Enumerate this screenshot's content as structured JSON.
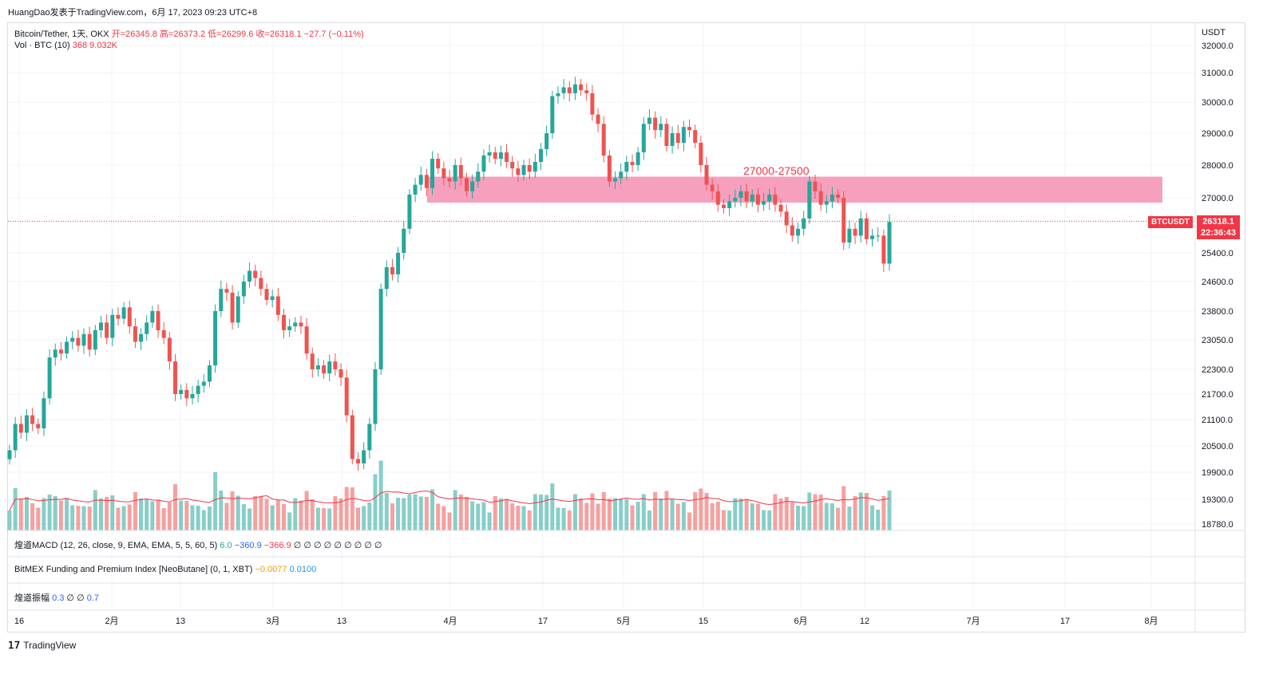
{
  "header": {
    "watermark": "HuangDao发表于TradingView.com，6月 17, 2023 09:23 UTC+8"
  },
  "legend": {
    "symbol": "Bitcoin/Tether, 1天, OKX",
    "ohlc": "开=26345.8  高=26373.2  低=26299.6  收=26318.1  −27.7 (−0.11%)",
    "volume_label": "Vol · BTC (10)",
    "volume_values": "368  9.032K"
  },
  "indicators": {
    "macd": {
      "label": "煌道MACD (12, 26, close, 9, EMA, EMA, 5, 5, 60, 5)",
      "v1": "6.0",
      "v2": "−360.9",
      "v3": "−366.9",
      "rest": "∅ ∅ ∅ ∅ ∅ ∅ ∅ ∅ ∅"
    },
    "bitmex": {
      "label": "BitMEX Funding and Premium Index [NeoButane] (0, 1, XBT)",
      "v1": "−0.0077",
      "v2": "0.0100"
    },
    "amp": {
      "label": "煌道振幅",
      "v1": "0.3",
      "v2": "∅",
      "v3": "∅",
      "v4": "0.7"
    }
  },
  "price_axis": {
    "currency": "USDT",
    "ticks": [
      "32000.0",
      "31000.0",
      "30000.0",
      "29000.0",
      "28000.0",
      "27000.0",
      "25400.0",
      "24600.0",
      "23800.0",
      "23050.0",
      "22300.0",
      "21700.0",
      "21100.0",
      "20500.0",
      "19900.0",
      "19300.0",
      "18780.0"
    ],
    "last_price": "26318.1",
    "countdown": "22:36:43",
    "symbol_chip": "BTCUSDT"
  },
  "time_axis": {
    "ticks": [
      "16",
      "2月",
      "13",
      "3月",
      "13",
      "4月",
      "17",
      "5月",
      "15",
      "6月",
      "12",
      "7月",
      "17",
      "8月"
    ]
  },
  "annotation": {
    "text": "27000-27500"
  },
  "branding": {
    "logo": "TradingView"
  },
  "colors": {
    "up": "#26a69a",
    "down": "#ef5350",
    "zone": "#f48fb1",
    "ma": "#f23645"
  },
  "chart_data": {
    "type": "candlestick",
    "title": "Bitcoin/Tether, 1天, OKX",
    "ylabel": "USDT",
    "ylim": [
      18780,
      32000
    ],
    "scale": "log",
    "x": [
      "2023-01-14",
      "2023-06-17"
    ],
    "zone": {
      "from": 27000,
      "to": 27500
    },
    "last": 26318.1,
    "volume_ma_length": 10,
    "grid": true
  }
}
